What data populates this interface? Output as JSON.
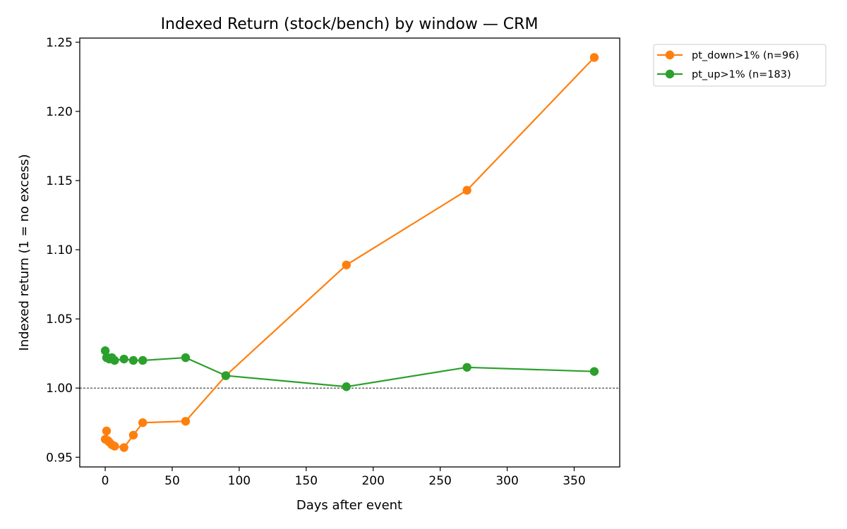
{
  "chart_data": {
    "type": "line",
    "title": "Indexed Return (stock/bench) by window — CRM",
    "xlabel": "Days after event",
    "ylabel": "Indexed return (1 = no excess)",
    "xlim": [
      -19,
      384
    ],
    "ylim": [
      0.943,
      1.253
    ],
    "x_ticks": [
      0,
      50,
      100,
      150,
      200,
      250,
      300,
      350
    ],
    "y_ticks": [
      0.95,
      1.0,
      1.05,
      1.1,
      1.15,
      1.2,
      1.25
    ],
    "y_tick_labels": [
      "0.95",
      "1.00",
      "1.05",
      "1.10",
      "1.15",
      "1.20",
      "1.25"
    ],
    "reference_line": {
      "y": 1.0,
      "style": "dashed",
      "color": "#000000"
    },
    "grid": false,
    "legend_position": "outside-top-right",
    "series": [
      {
        "name": "pt_down>1% (n=96)",
        "color": "#ff7f0e",
        "x": [
          0,
          1,
          2,
          3,
          5,
          7,
          14,
          21,
          28,
          60,
          90,
          180,
          270,
          365
        ],
        "y": [
          0.963,
          0.969,
          0.962,
          0.961,
          0.959,
          0.958,
          0.957,
          0.966,
          0.975,
          0.976,
          1.009,
          1.089,
          1.143,
          1.239
        ]
      },
      {
        "name": "pt_up>1% (n=183)",
        "color": "#2ca02c",
        "x": [
          0,
          1,
          2,
          3,
          5,
          7,
          14,
          21,
          28,
          60,
          90,
          180,
          270,
          365
        ],
        "y": [
          1.027,
          1.022,
          1.022,
          1.021,
          1.022,
          1.02,
          1.021,
          1.02,
          1.02,
          1.022,
          1.009,
          1.001,
          1.015,
          1.012
        ]
      }
    ]
  }
}
